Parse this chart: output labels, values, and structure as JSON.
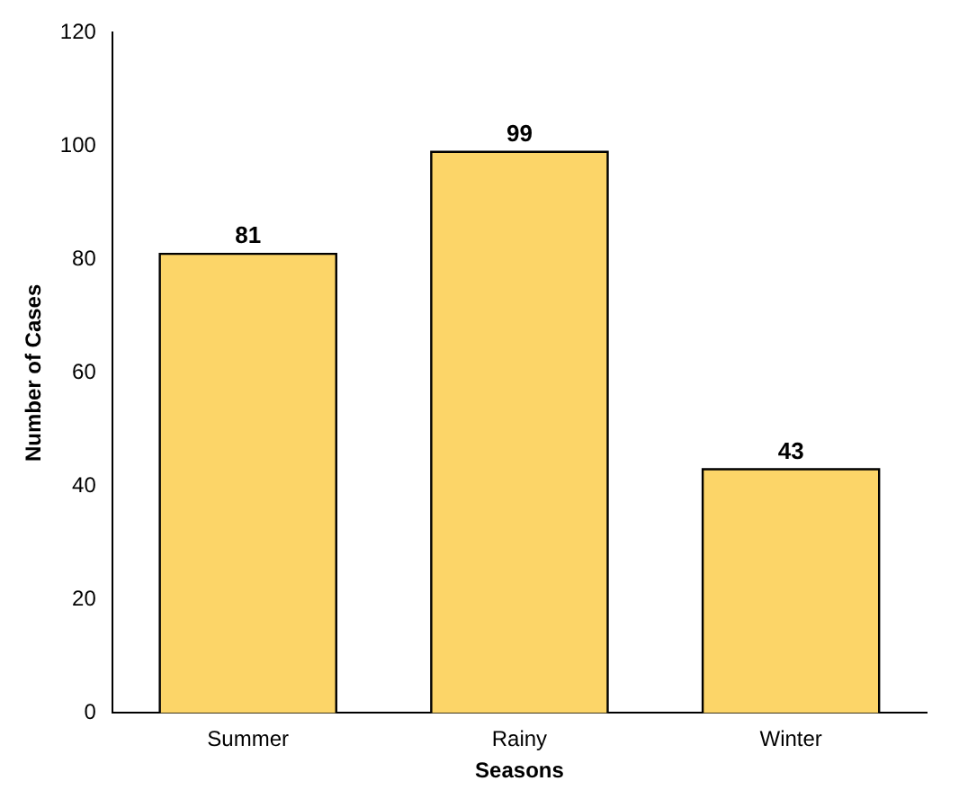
{
  "chart_data": {
    "type": "bar",
    "xlabel": "Seasons",
    "ylabel": "Number of Cases",
    "categories": [
      "Summer",
      "Rainy",
      "Winter"
    ],
    "values": [
      81,
      99,
      43
    ],
    "color": "#fcd568",
    "ylim": [
      0,
      120
    ],
    "yticks": [
      0,
      20,
      40,
      60,
      80,
      100,
      120
    ],
    "grid": false,
    "legend": false,
    "data_labels": true
  }
}
